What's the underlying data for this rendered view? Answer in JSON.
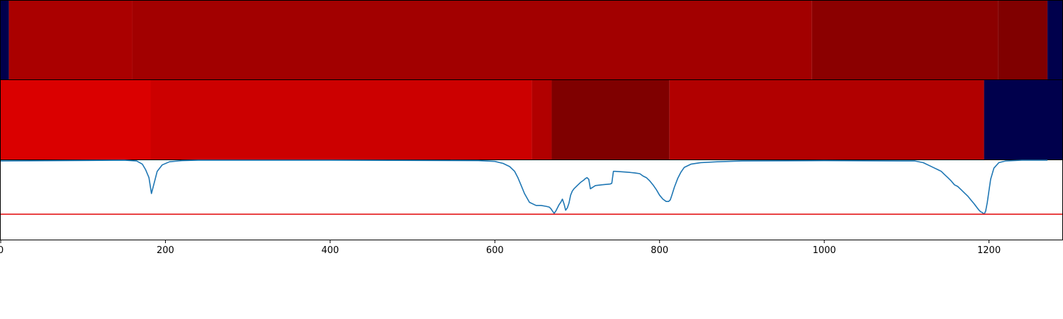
{
  "colors": {
    "background": "#ffffff",
    "axis": "#000000",
    "line": "#1f77b4",
    "threshold": "#e41a1c"
  },
  "chart_data": {
    "type": "heatmap",
    "xlim": [
      0,
      1289
    ],
    "xticks": [
      0,
      200,
      400,
      600,
      800,
      1000,
      1200
    ],
    "tick_labels": [
      "0",
      "200",
      "400",
      "600",
      "800",
      "1000",
      "1200"
    ],
    "grid": false,
    "legend": "none",
    "bands": [
      {
        "segments": [
          {
            "x0": 0,
            "x1": 10,
            "color": "#00004c"
          },
          {
            "x0": 10,
            "x1": 160,
            "color": "#aa0000"
          },
          {
            "x0": 160,
            "x1": 985,
            "color": "#a20000"
          },
          {
            "x0": 985,
            "x1": 1211,
            "color": "#8b0000"
          },
          {
            "x0": 1211,
            "x1": 1271,
            "color": "#800000"
          },
          {
            "x0": 1271,
            "x1": 1289,
            "color": "#00004c"
          }
        ]
      },
      {
        "segments": [
          {
            "x0": 0,
            "x1": 182,
            "color": "#da0000"
          },
          {
            "x0": 182,
            "x1": 645,
            "color": "#cc0000"
          },
          {
            "x0": 645,
            "x1": 669,
            "color": "#b10000"
          },
          {
            "x0": 669,
            "x1": 812,
            "color": "#7f0000"
          },
          {
            "x0": 812,
            "x1": 1194,
            "color": "#b10000"
          },
          {
            "x0": 1194,
            "x1": 1289,
            "color": "#00004c"
          }
        ]
      }
    ],
    "line_panel": {
      "ylim": [
        0,
        1
      ],
      "threshold": 0.32,
      "series": [
        {
          "x": [
            0,
            150,
            165,
            172,
            176,
            180,
            183,
            186,
            190,
            196,
            205,
            220,
            240,
            400,
            580,
            600,
            610,
            618,
            624,
            628,
            632,
            636,
            642,
            650,
            656,
            662,
            666,
            668,
            670,
            672,
            674,
            676,
            678,
            680,
            682,
            684,
            686,
            688,
            690,
            692,
            694,
            696,
            698,
            700,
            704,
            708,
            710,
            712,
            714,
            716,
            722,
            730,
            740,
            742,
            744,
            746,
            760,
            770,
            776,
            780,
            784,
            788,
            792,
            796,
            800,
            804,
            808,
            811,
            813,
            815,
            818,
            822,
            826,
            830,
            838,
            850,
            870,
            900,
            1000,
            1100,
            1110,
            1120,
            1128,
            1134,
            1138,
            1142,
            1146,
            1150,
            1154,
            1158,
            1162,
            1166,
            1170,
            1174,
            1178,
            1182,
            1185,
            1188,
            1190,
            1192,
            1194,
            1196,
            1198,
            1200,
            1202,
            1206,
            1212,
            1220,
            1240,
            1260,
            1271
          ],
          "y": [
            0.99,
            1.0,
            0.99,
            0.95,
            0.88,
            0.78,
            0.58,
            0.7,
            0.86,
            0.94,
            0.98,
            0.995,
            1.0,
            1.0,
            0.995,
            0.985,
            0.96,
            0.92,
            0.86,
            0.78,
            0.68,
            0.58,
            0.47,
            0.43,
            0.43,
            0.42,
            0.41,
            0.39,
            0.36,
            0.33,
            0.36,
            0.4,
            0.44,
            0.47,
            0.51,
            0.45,
            0.37,
            0.4,
            0.46,
            0.56,
            0.61,
            0.64,
            0.66,
            0.68,
            0.72,
            0.75,
            0.77,
            0.78,
            0.76,
            0.64,
            0.68,
            0.69,
            0.7,
            0.71,
            0.86,
            0.86,
            0.85,
            0.84,
            0.83,
            0.8,
            0.78,
            0.74,
            0.69,
            0.63,
            0.56,
            0.51,
            0.48,
            0.48,
            0.5,
            0.56,
            0.66,
            0.77,
            0.85,
            0.91,
            0.95,
            0.97,
            0.98,
            0.99,
            0.995,
            0.99,
            0.99,
            0.97,
            0.93,
            0.9,
            0.88,
            0.86,
            0.82,
            0.78,
            0.74,
            0.69,
            0.67,
            0.63,
            0.59,
            0.55,
            0.5,
            0.45,
            0.41,
            0.37,
            0.35,
            0.34,
            0.32,
            0.36,
            0.47,
            0.62,
            0.76,
            0.9,
            0.97,
            0.99,
            1.0,
            1.0,
            1.0
          ]
        }
      ]
    }
  }
}
